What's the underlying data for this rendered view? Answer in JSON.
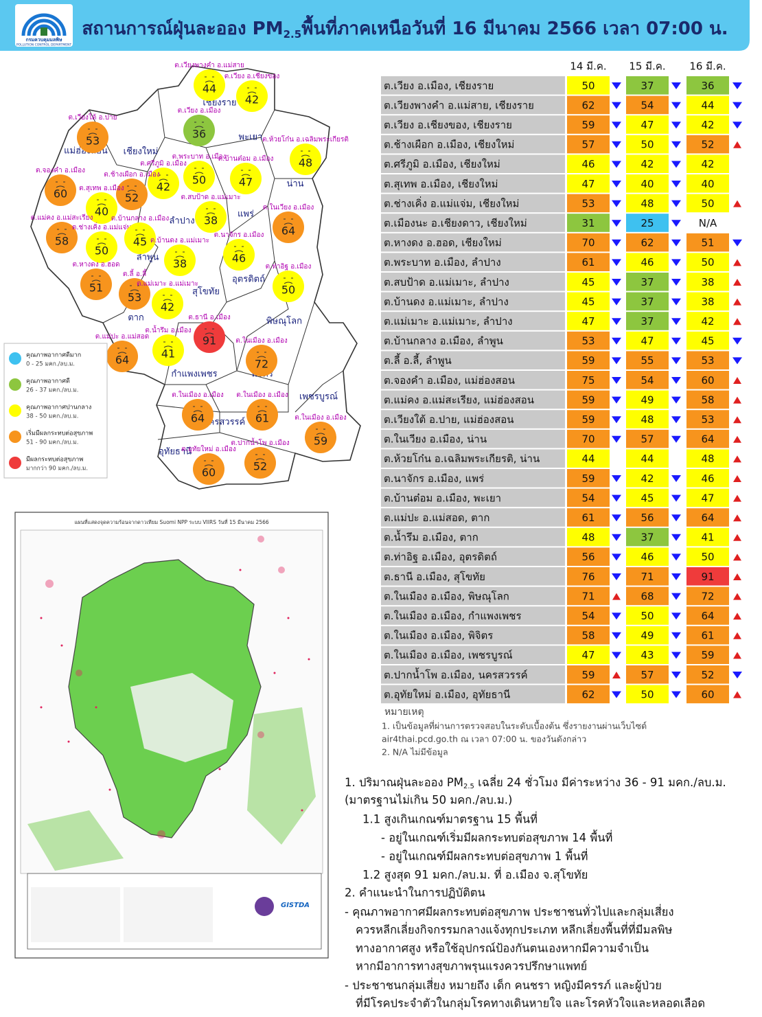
{
  "header": {
    "logo_name": "กรมควบคุมมลพิษ",
    "logo_en": "POLLUTION CONTROL DEPARTMENT",
    "title": {
      "before": "สถานการณ์ฝุ่นละออง PM",
      "sub": "2.5",
      "after": "พื้นที่ภาคเหนือวันที่ 16 มีนาคม 2566 เวลา 07:00 น."
    }
  },
  "map": {
    "provinces": [
      "เชียงราย",
      "แม่ฮ่องสอน",
      "เชียงใหม่",
      "พะเยา",
      "น่าน",
      "ลำปาง",
      "แพร่",
      "ลำพูน",
      "อุตรดิตถ์",
      "สุโขทัย",
      "ตาก",
      "พิษณุโลก",
      "กำแพงเพชร",
      "พิจิตร",
      "เพชรบูรณ์",
      "นครสวรรค์",
      "อุทัยธานี"
    ],
    "stations": [
      {
        "label": "ต.เวียงพางคำ อ.แม่สาย",
        "value": 44
      },
      {
        "label": "ต.เวียง อ.เชียงของ",
        "value": 42
      },
      {
        "label": "ต.เวียง อ.เมือง",
        "value": 36
      },
      {
        "label": "ต.เวียงใต้ อ.ปาย",
        "value": 53
      },
      {
        "label": "ต.ห้วยโก๋น อ.เฉลิมพระเกียรติ",
        "value": 48
      },
      {
        "label": "ต.จองคำ อ.เมือง",
        "value": 60
      },
      {
        "label": "ต.ศรีภูมิ อ.เมือง",
        "value": 42
      },
      {
        "label": "ต.ช้างเผือก อ.เมือง",
        "value": 52
      },
      {
        "label": "ต.พระบาท อ.เมือง",
        "value": 50
      },
      {
        "label": "ต.บ้านต๋อม อ.เมือง",
        "value": 47
      },
      {
        "label": "ต.สุเทพ อ.เมือง",
        "value": 40
      },
      {
        "label": "ต.สบป้าด อ.แม่เมาะ",
        "value": 38
      },
      {
        "label": "ต.ในเวียง อ.เมือง",
        "value": 64
      },
      {
        "label": "ต.แม่คง อ.แม่สะเรียง",
        "value": 58
      },
      {
        "label": "ต.ช่างเคิ่ง อ.แม่แจ่ม",
        "value": 50
      },
      {
        "label": "ต.บ้านกลาง อ.เมือง",
        "value": 45
      },
      {
        "label": "ต.บ้านดง อ.แม่เมาะ",
        "value": 38
      },
      {
        "label": "ต.นาจักร อ.เมือง",
        "value": 46
      },
      {
        "label": "ต.หางดง อ.ฮอด",
        "value": 51
      },
      {
        "label": "ต.ลี้ อ.ลี้",
        "value": 53
      },
      {
        "label": "ต.แม่เมาะ อ.แม่เมาะ",
        "value": 42
      },
      {
        "label": "ต.ท่าอิฐ อ.เมือง",
        "value": 50
      },
      {
        "label": "ต.ธานี อ.เมือง",
        "value": 91
      },
      {
        "label": "ต.น้ำรึม อ.เมือง",
        "value": 41
      },
      {
        "label": "ต.แม่ปะ อ.แม่สอด",
        "value": 64
      },
      {
        "label": "ต.ในเมือง อ.เมือง",
        "value": 72
      },
      {
        "label": "ต.ในเมือง อ.เมือง",
        "value": 64
      },
      {
        "label": "ต.ในเมือง อ.เมือง",
        "value": 61
      },
      {
        "label": "ต.ในเมือง อ.เมือง",
        "value": 59
      },
      {
        "label": "ต.อุทัยใหม่ อ.เมือง",
        "value": 60
      },
      {
        "label": "ต.ปากน้ำโพ อ.เมือง",
        "value": 52
      }
    ]
  },
  "legend": [
    {
      "title": "คุณภาพอากาศดีมาก",
      "range": "0 - 25 มคก./ลบ.ม.",
      "max": 25,
      "color": "#3ec1f0"
    },
    {
      "title": "คุณภาพอากาศดี",
      "range": "26 - 37 มคก./ลบ.ม.",
      "max": 37,
      "color": "#8dc63f"
    },
    {
      "title": "คุณภาพอากาศปานกลาง",
      "range": "38 - 50 มคก./ลบ.ม.",
      "max": 50,
      "color": "#ffff00"
    },
    {
      "title": "เริ่มมีผลกระทบต่อสุขภาพ",
      "range": "51 - 90 มคก./ลบ.ม.",
      "max": 90,
      "color": "#f7941d"
    },
    {
      "title": "มีผลกระทบต่อสุขภาพ",
      "range": "มากกว่า 90 มคก./ลบ.ม.",
      "max": null,
      "color": "#ef3b3b"
    }
  ],
  "hotspot_map": {
    "title": "แผนที่แสดงจุดความร้อนจากดาวเทียม Suomi NPP ระบบ VIIRS  วันที่ 15 มีนาคม 2566",
    "credit": "GISTDA"
  },
  "table": {
    "days": [
      "14 มี.ค.",
      "15 มี.ค.",
      "16 มี.ค."
    ],
    "trend_colors": {
      "down": "#1a1aff",
      "up": "#e02020"
    },
    "rows": [
      {
        "name": "ต.เวียง อ.เมือง, เชียงราย",
        "values": [
          50,
          37,
          36
        ],
        "trends": [
          "down",
          "down",
          "down"
        ]
      },
      {
        "name": "ต.เวียงพางคำ อ.แม่สาย, เชียงราย",
        "values": [
          62,
          54,
          44
        ],
        "trends": [
          "down",
          "down",
          "down"
        ]
      },
      {
        "name": "ต.เวียง อ.เชียงของ, เชียงราย",
        "values": [
          59,
          47,
          42
        ],
        "trends": [
          "down",
          "down",
          "down"
        ]
      },
      {
        "name": "ต.ช้างเผือก อ.เมือง, เชียงใหม่",
        "values": [
          57,
          50,
          52
        ],
        "trends": [
          "down",
          "down",
          "up"
        ]
      },
      {
        "name": "ต.ศรีภูมิ อ.เมือง, เชียงใหม่",
        "values": [
          46,
          42,
          42
        ],
        "trends": [
          "down",
          "down",
          null
        ]
      },
      {
        "name": "ต.สุเทพ อ.เมือง, เชียงใหม่",
        "values": [
          47,
          40,
          40
        ],
        "trends": [
          "down",
          "down",
          null
        ]
      },
      {
        "name": "ต.ช่างเคิ่ง อ.แม่แจ่ม, เชียงใหม่",
        "values": [
          53,
          48,
          50
        ],
        "trends": [
          "down",
          "down",
          "up"
        ]
      },
      {
        "name": "ต.เมืองนะ อ.เชียงดาว, เชียงใหม่",
        "values": [
          31,
          25,
          "N/A"
        ],
        "trends": [
          "down",
          "down",
          null
        ]
      },
      {
        "name": "ต.หางดง อ.ฮอด, เชียงใหม่",
        "values": [
          70,
          62,
          51
        ],
        "trends": [
          "down",
          "down",
          "down"
        ]
      },
      {
        "name": "ต.พระบาท อ.เมือง, ลำปาง",
        "values": [
          61,
          46,
          50
        ],
        "trends": [
          "down",
          "down",
          "up"
        ]
      },
      {
        "name": "ต.สบป้าด อ.แม่เมาะ, ลำปาง",
        "values": [
          45,
          37,
          38
        ],
        "trends": [
          "down",
          "down",
          "up"
        ]
      },
      {
        "name": "ต.บ้านดง อ.แม่เมาะ, ลำปาง",
        "values": [
          45,
          37,
          38
        ],
        "trends": [
          "down",
          "down",
          "up"
        ]
      },
      {
        "name": "ต.แม่เมาะ อ.แม่เมาะ, ลำปาง",
        "values": [
          47,
          37,
          42
        ],
        "trends": [
          "down",
          "down",
          "up"
        ]
      },
      {
        "name": "ต.บ้านกลาง อ.เมือง, ลำพูน",
        "values": [
          53,
          47,
          45
        ],
        "trends": [
          "down",
          "down",
          "down"
        ]
      },
      {
        "name": "ต.ลี้ อ.ลี้, ลำพูน",
        "values": [
          59,
          55,
          53
        ],
        "trends": [
          "down",
          "down",
          "down"
        ]
      },
      {
        "name": "ต.จองคำ อ.เมือง, แม่ฮ่องสอน",
        "values": [
          75,
          54,
          60
        ],
        "trends": [
          "down",
          "down",
          "up"
        ]
      },
      {
        "name": "ต.แม่คง อ.แม่สะเรียง, แม่ฮ่องสอน",
        "values": [
          59,
          49,
          58
        ],
        "trends": [
          "down",
          "down",
          "up"
        ]
      },
      {
        "name": "ต.เวียงใต้ อ.ปาย, แม่ฮ่องสอน",
        "values": [
          59,
          48,
          53
        ],
        "trends": [
          "down",
          "down",
          "up"
        ]
      },
      {
        "name": "ต.ในเวียง อ.เมือง, น่าน",
        "values": [
          70,
          57,
          64
        ],
        "trends": [
          "down",
          "down",
          "up"
        ]
      },
      {
        "name": "ต.ห้วยโก๋น อ.เฉลิมพระเกียรติ, น่าน",
        "values": [
          44,
          44,
          48
        ],
        "trends": [
          null,
          null,
          "up"
        ]
      },
      {
        "name": "ต.นาจักร อ.เมือง, แพร่",
        "values": [
          59,
          42,
          46
        ],
        "trends": [
          "down",
          "down",
          "up"
        ]
      },
      {
        "name": "ต.บ้านต๋อม อ.เมือง, พะเยา",
        "values": [
          54,
          45,
          47
        ],
        "trends": [
          "down",
          "down",
          "up"
        ]
      },
      {
        "name": "ต.แม่ปะ อ.แม่สอด, ตาก",
        "values": [
          61,
          56,
          64
        ],
        "trends": [
          "down",
          "down",
          "up"
        ]
      },
      {
        "name": "ต.น้ำรึม อ.เมือง, ตาก",
        "values": [
          48,
          37,
          41
        ],
        "trends": [
          "down",
          "down",
          "up"
        ]
      },
      {
        "name": "ต.ท่าอิฐ อ.เมือง, อุตรดิตถ์",
        "values": [
          56,
          46,
          50
        ],
        "trends": [
          "down",
          "down",
          "up"
        ]
      },
      {
        "name": "ต.ธานี อ.เมือง, สุโขทัย",
        "values": [
          76,
          71,
          91
        ],
        "trends": [
          "down",
          "down",
          "up"
        ]
      },
      {
        "name": "ต.ในเมือง อ.เมือง, พิษณุโลก",
        "values": [
          71,
          68,
          72
        ],
        "trends": [
          "up",
          "down",
          "up"
        ]
      },
      {
        "name": "ต.ในเมือง อ.เมือง, กำแพงเพชร",
        "values": [
          54,
          50,
          64
        ],
        "trends": [
          "down",
          "down",
          "up"
        ]
      },
      {
        "name": "ต.ในเมือง อ.เมือง, พิจิตร",
        "values": [
          58,
          49,
          61
        ],
        "trends": [
          "down",
          "down",
          "up"
        ]
      },
      {
        "name": "ต.ในเมือง อ.เมือง, เพชรบูรณ์",
        "values": [
          47,
          43,
          59
        ],
        "trends": [
          "down",
          "down",
          "up"
        ]
      },
      {
        "name": "ต.ปากน้ำโพ อ.เมือง, นครสวรรค์",
        "values": [
          59,
          57,
          52
        ],
        "trends": [
          "up",
          "down",
          "down"
        ]
      },
      {
        "name": "ต.อุทัยใหม่ อ.เมือง, อุทัยธานี",
        "values": [
          62,
          50,
          60
        ],
        "trends": [
          "down",
          "down",
          "up"
        ]
      }
    ]
  },
  "notes": {
    "title": "หมายเหตุ",
    "lines": [
      "1. เป็นข้อมูลที่ผ่านการตรวจสอบในระดับเบื้องต้น ซึ่งรายงานผ่านเว็บไซต์",
      "air4thai.pcd.go.th  ณ  เวลา 07:00  น.  ของวันดังกล่าว",
      "2.  N/A  ไม่มีข้อมูล"
    ]
  },
  "summary": {
    "intro": {
      "before": "1. ปริมาณฝุ่นละออง PM",
      "sub": "2.5",
      "after": "  เฉลี่ย 24 ชั่วโมง มีค่าระหว่าง 36 - 91 มคก./ลบ.ม."
    },
    "lines": [
      "(มาตรฐานไม่เกิน 50 มคก./ลบ.ม.)",
      "1.1 สูงเกินเกณฑ์มาตรฐาน 15 พื้นที่",
      "- อยู่ในเกณฑ์เริ่มมีผลกระทบต่อสุขภาพ 14 พื้นที่",
      "- อยู่ในเกณฑ์มีผลกระทบต่อสุขภาพ 1 พื้นที่",
      "1.2 สูงสุด 91 มคก./ลบ.ม. ที่ อ.เมือง จ.สุโขทัย",
      "2. คำแนะนำในการปฏิบัติตน",
      "- คุณภาพอากาศมีผลกระทบต่อสุขภาพ ประชาชนทั่วไปและกลุ่มเสี่ยง",
      "ควรหลีกเลี่ยงกิจกรรมกลางแจ้งทุกประเภท หลีกเลี่ยงพื้นที่ที่มีมลพิษ",
      "ทางอากาศสูง หรือใช้อุปกรณ์ป้องกันตนเองหากมีความจำเป็น",
      "หากมีอาการทางสุขภาพรุนแรงควรปรึกษาแพทย์",
      "- ประชาชนกลุ่มเสี่ยง หมายถึง เด็ก คนชรา หญิงมีครรภ์ และผู้ป่วย",
      "ที่มีโรคประจำตัวในกลุ่มโรคทางเดินหายใจ และโรคหัวใจและหลอดเลือด"
    ]
  }
}
